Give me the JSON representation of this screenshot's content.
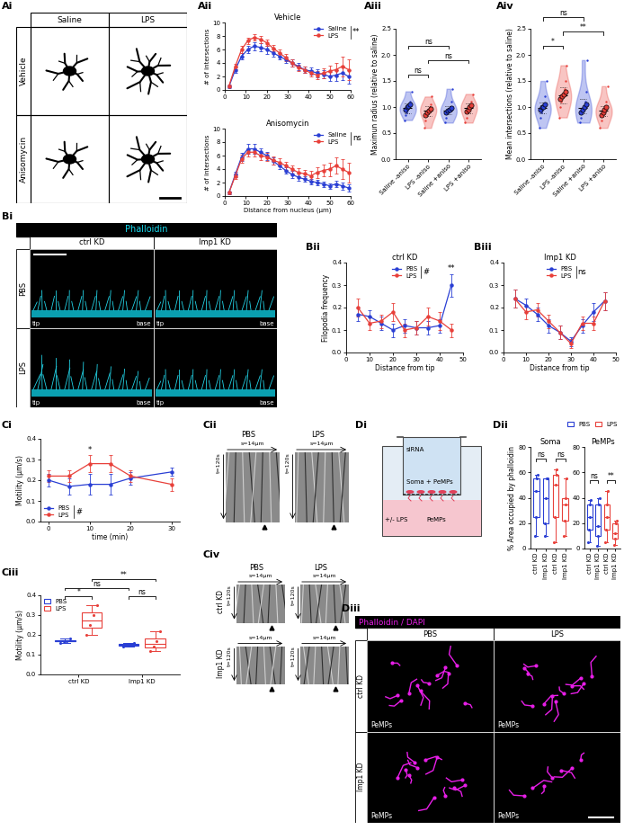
{
  "chart_data": [
    {
      "panel": "Aii",
      "type": "line",
      "title": "Vehicle",
      "y_label": "# of intersections",
      "x": [
        2,
        5,
        8,
        11,
        14,
        17,
        20,
        23,
        26,
        29,
        32,
        35,
        38,
        41,
        44,
        47,
        50,
        53,
        56,
        59
      ],
      "xlim": [
        0,
        60
      ],
      "xticks": [
        0,
        10,
        20,
        30,
        40,
        50,
        60
      ],
      "ylim": [
        0,
        10
      ],
      "yticks": [
        0,
        2,
        4,
        6,
        8,
        10
      ],
      "legend": "upper right",
      "stat": "**",
      "series": [
        {
          "name": "Saline",
          "color": "#2a3fd4",
          "values": [
            0.5,
            3.0,
            5.0,
            6.0,
            6.5,
            6.3,
            6.0,
            5.5,
            5.0,
            4.5,
            4.0,
            3.5,
            3.0,
            2.8,
            2.5,
            2.3,
            2.0,
            2.2,
            2.5,
            2.0
          ],
          "errors": [
            0.2,
            0.4,
            0.5,
            0.5,
            0.6,
            0.6,
            0.6,
            0.6,
            0.5,
            0.5,
            0.5,
            0.5,
            0.5,
            0.5,
            0.6,
            0.6,
            0.7,
            0.8,
            1.0,
            1.0
          ]
        },
        {
          "name": "LPS",
          "color": "#e8403a",
          "values": [
            0.6,
            3.5,
            6.0,
            7.3,
            7.8,
            7.5,
            7.0,
            6.2,
            5.5,
            4.8,
            4.0,
            3.3,
            3.0,
            2.5,
            2.2,
            2.5,
            2.8,
            3.0,
            3.5,
            3.0
          ],
          "errors": [
            0.2,
            0.4,
            0.5,
            0.5,
            0.5,
            0.5,
            0.5,
            0.5,
            0.5,
            0.5,
            0.5,
            0.5,
            0.5,
            0.5,
            0.6,
            0.7,
            0.8,
            1.0,
            1.5,
            1.5
          ]
        }
      ]
    },
    {
      "type": "line",
      "title": "Anisomycin",
      "x_label": "Distance from nucleus (µm)",
      "y_label": "# of intersections",
      "x": [
        2,
        5,
        8,
        11,
        14,
        17,
        20,
        23,
        26,
        29,
        32,
        35,
        38,
        41,
        44,
        47,
        50,
        53,
        56,
        59
      ],
      "xlim": [
        0,
        60
      ],
      "xticks": [
        0,
        10,
        20,
        30,
        40,
        50,
        60
      ],
      "ylim": [
        0,
        10
      ],
      "yticks": [
        0,
        2,
        4,
        6,
        8,
        10
      ],
      "legend": "upper right",
      "stat": "ns",
      "series": [
        {
          "name": "Saline",
          "color": "#2a3fd4",
          "values": [
            0.5,
            3.2,
            5.8,
            7.0,
            7.0,
            6.5,
            6.0,
            5.2,
            4.5,
            3.8,
            3.2,
            2.8,
            2.5,
            2.2,
            2.0,
            1.8,
            1.5,
            1.8,
            1.5,
            1.2
          ],
          "errors": [
            0.2,
            0.4,
            0.6,
            0.7,
            0.7,
            0.6,
            0.6,
            0.5,
            0.5,
            0.5,
            0.5,
            0.5,
            0.4,
            0.4,
            0.4,
            0.4,
            0.4,
            0.5,
            0.5,
            0.5
          ]
        },
        {
          "name": "LPS",
          "color": "#e8403a",
          "values": [
            0.5,
            3.0,
            5.5,
            6.5,
            6.5,
            6.0,
            5.8,
            5.3,
            5.0,
            4.5,
            4.0,
            3.5,
            3.3,
            3.0,
            3.5,
            3.8,
            4.0,
            4.5,
            4.0,
            3.5
          ],
          "errors": [
            0.2,
            0.4,
            0.6,
            0.6,
            0.6,
            0.6,
            0.6,
            0.6,
            0.6,
            0.6,
            0.6,
            0.6,
            0.6,
            0.7,
            0.8,
            0.9,
            1.0,
            1.2,
            1.5,
            1.5
          ]
        }
      ]
    },
    {
      "panel": "Aiii",
      "type": "violin",
      "y_label": "Maximun radius (relative to saline)",
      "categories": [
        "Saline -aniso",
        "LPS -aniso",
        "Saline +aniso",
        "LPS +aniso"
      ],
      "colors": [
        "#2a3fd4",
        "#e8403a",
        "#2a3fd4",
        "#e8403a"
      ],
      "ylim": [
        0,
        2.5
      ],
      "yticks": [
        {
          "value": 0,
          "label": "0.0"
        },
        0.5,
        {
          "value": 1,
          "label": "1.0"
        },
        1.5,
        {
          "value": 2,
          "label": "2.0"
        },
        2.5
      ],
      "values": [
        [
          0.75,
          0.85,
          0.9,
          0.95,
          1.0,
          1.05,
          1.1,
          1.3
        ],
        [
          0.6,
          0.75,
          0.85,
          0.9,
          0.95,
          1.0,
          1.05,
          1.2
        ],
        [
          0.7,
          0.8,
          0.88,
          0.92,
          0.95,
          1.0,
          1.1,
          1.35
        ],
        [
          0.7,
          0.8,
          0.9,
          0.95,
          1.0,
          1.05,
          1.1,
          1.25
        ]
      ],
      "animal_means": [
        [
          0.95,
          1.0,
          1.02,
          1.05
        ],
        [
          0.85,
          0.9,
          0.93,
          0.97
        ],
        [
          0.9,
          0.93,
          0.95,
          0.98
        ],
        [
          0.92,
          0.95,
          1.0,
          1.03
        ]
      ],
      "comparisons": [
        {
          "between": [
            0,
            1
          ],
          "label": "ns"
        },
        {
          "between": [
            1,
            3
          ],
          "label": "ns"
        },
        {
          "between": [
            0,
            2
          ],
          "label": "ns"
        }
      ]
    },
    {
      "panel": "Aiv",
      "type": "violin",
      "y_label": "Mean intersections (relative to saline)",
      "categories": [
        "Saline -aniso",
        "LPS -aniso",
        "Saline +aniso",
        "LPS +aniso"
      ],
      "colors": [
        "#2a3fd4",
        "#e8403a",
        "#2a3fd4",
        "#e8403a"
      ],
      "ylim": [
        0,
        2.5
      ],
      "yticks": [
        {
          "value": 0,
          "label": "0.0"
        },
        0.5,
        {
          "value": 1,
          "label": "1.0"
        },
        1.5,
        {
          "value": 2,
          "label": "2.0"
        },
        2.5
      ],
      "values": [
        [
          0.6,
          0.8,
          0.9,
          0.95,
          1.0,
          1.05,
          1.2,
          1.5
        ],
        [
          0.8,
          1.0,
          1.1,
          1.2,
          1.25,
          1.35,
          1.5,
          1.8
        ],
        [
          0.7,
          0.8,
          0.9,
          0.95,
          1.0,
          1.1,
          1.3,
          1.9
        ],
        [
          0.6,
          0.75,
          0.85,
          0.9,
          0.95,
          1.0,
          1.1,
          1.4
        ]
      ],
      "animal_means": [
        [
          0.95,
          1.0,
          1.0,
          1.05
        ],
        [
          1.15,
          1.2,
          1.25,
          1.3
        ],
        [
          0.9,
          0.95,
          1.0,
          1.05
        ],
        [
          0.85,
          0.9,
          0.95,
          1.0
        ]
      ],
      "comparisons": [
        {
          "between": [
            0,
            1
          ],
          "label": "*"
        },
        {
          "between": [
            1,
            3
          ],
          "label": "**"
        },
        {
          "between": [
            0,
            2
          ],
          "label": "ns"
        }
      ]
    },
    {
      "panel": "Bii",
      "type": "line",
      "title": "ctrl KD",
      "x_label": "Distance from tip",
      "y_label": "Filopodia frequency",
      "x": [
        5,
        10,
        15,
        20,
        25,
        30,
        35,
        40,
        45
      ],
      "xlim": [
        0,
        50
      ],
      "xticks": [
        0,
        10,
        20,
        30,
        40,
        50
      ],
      "ylim": [
        0,
        0.4
      ],
      "yticks": [
        {
          "value": 0,
          "label": "0.0"
        },
        0.1,
        0.2,
        0.3,
        0.4
      ],
      "legend": "upper center",
      "stat": "#",
      "annotations": [
        {
          "x": 45,
          "text": "**"
        }
      ],
      "series": [
        {
          "name": "PBS",
          "color": "#2a3fd4",
          "values": [
            0.17,
            0.16,
            0.13,
            0.1,
            0.12,
            0.11,
            0.11,
            0.12,
            0.3
          ],
          "errors": [
            0.03,
            0.03,
            0.03,
            0.03,
            0.03,
            0.03,
            0.03,
            0.03,
            0.05
          ]
        },
        {
          "name": "LPS",
          "color": "#e8403a",
          "values": [
            0.2,
            0.13,
            0.14,
            0.18,
            0.1,
            0.11,
            0.16,
            0.14,
            0.1
          ],
          "errors": [
            0.04,
            0.03,
            0.03,
            0.04,
            0.03,
            0.03,
            0.04,
            0.04,
            0.03
          ]
        }
      ]
    },
    {
      "panel": "Biii",
      "type": "line",
      "title": "Imp1 KD",
      "x_label": "Distance from tip",
      "x": [
        5,
        10,
        15,
        20,
        25,
        30,
        35,
        40,
        45
      ],
      "xlim": [
        0,
        50
      ],
      "xticks": [
        0,
        10,
        20,
        30,
        40,
        50
      ],
      "ylim": [
        0,
        0.4
      ],
      "yticks": [
        {
          "value": 0,
          "label": "0.0"
        },
        0.1,
        0.2,
        0.3,
        0.4
      ],
      "legend": "upper center",
      "stat": "ns",
      "series": [
        {
          "name": "PBS",
          "color": "#2a3fd4",
          "values": [
            0.24,
            0.21,
            0.17,
            0.12,
            0.09,
            0.05,
            0.12,
            0.18,
            0.23
          ],
          "errors": [
            0.04,
            0.03,
            0.03,
            0.03,
            0.03,
            0.02,
            0.03,
            0.04,
            0.04
          ]
        },
        {
          "name": "LPS",
          "color": "#e8403a",
          "values": [
            0.24,
            0.18,
            0.19,
            0.14,
            0.09,
            0.04,
            0.13,
            0.13,
            0.23
          ],
          "errors": [
            0.04,
            0.03,
            0.03,
            0.03,
            0.03,
            0.02,
            0.03,
            0.03,
            0.04
          ]
        }
      ]
    },
    {
      "panel": "Ci",
      "type": "line",
      "x_label": "time (min)",
      "y_label": "Motility (µm/s)",
      "x": [
        0,
        5,
        10,
        15,
        20,
        30
      ],
      "xlim": [
        -2,
        32
      ],
      "xticks": [
        0,
        10,
        20,
        30
      ],
      "ylim": [
        0,
        0.4
      ],
      "yticks": [
        {
          "value": 0,
          "label": "0.0"
        },
        0.1,
        0.2,
        0.3,
        0.4
      ],
      "legend": "lower left",
      "stat": "#",
      "annotations": [
        {
          "x": 10,
          "text": "*"
        }
      ],
      "series": [
        {
          "name": "PBS",
          "color": "#2a3fd4",
          "values": [
            0.2,
            0.17,
            0.18,
            0.18,
            0.21,
            0.24
          ],
          "errors": [
            0.03,
            0.04,
            0.05,
            0.05,
            0.03,
            0.02
          ]
        },
        {
          "name": "LPS",
          "color": "#e8403a",
          "values": [
            0.22,
            0.22,
            0.28,
            0.28,
            0.22,
            0.18
          ],
          "errors": [
            0.03,
            0.03,
            0.04,
            0.04,
            0.03,
            0.03
          ]
        }
      ]
    },
    {
      "panel": "Ciii",
      "type": "box",
      "y_label": "Motility (µm/s)",
      "categories": [
        "ctrl KD",
        "Imp1 KD"
      ],
      "ylim": [
        0,
        0.4
      ],
      "yticks": [
        {
          "value": 0,
          "label": "0.0"
        },
        0.1,
        0.2,
        0.3,
        0.4
      ],
      "legend": "upper left",
      "series": [
        {
          "name": "PBS",
          "color": "#2a3fd4",
          "values": [
            [
              0.16,
              0.17,
              0.17,
              0.18
            ],
            [
              0.14,
              0.15,
              0.15,
              0.16
            ]
          ]
        },
        {
          "name": "LPS",
          "color": "#e8403a",
          "values": [
            [
              0.2,
              0.25,
              0.3,
              0.35
            ],
            [
              0.12,
              0.14,
              0.17,
              0.22
            ]
          ]
        }
      ],
      "comparisons": [
        {
          "between": [
            0,
            1
          ],
          "label": "*"
        },
        {
          "between": [
            2,
            3
          ],
          "label": "ns"
        },
        {
          "between": [
            0,
            2
          ],
          "label": "ns"
        },
        {
          "between": [
            1,
            3
          ],
          "label": "**"
        }
      ]
    },
    {
      "panel": "Dii",
      "type": "box",
      "title": "Soma",
      "y_label": "% Area occupied by phalloidin",
      "categories": [
        "ctrl KD",
        "Imp1 KD"
      ],
      "ylim": [
        0,
        80
      ],
      "yticks": [
        0,
        20,
        40,
        60,
        80
      ],
      "series": [
        {
          "name": "PBS",
          "color": "#2a3fd4",
          "values": [
            [
              10,
              25,
              45,
              55,
              58
            ],
            [
              10,
              20,
              40,
              55,
              55
            ]
          ]
        },
        {
          "name": "LPS",
          "color": "#e8403a",
          "values": [
            [
              5,
              25,
              50,
              58,
              62
            ],
            [
              10,
              22,
              35,
              40,
              55
            ]
          ]
        }
      ],
      "comparisons": [
        {
          "between": [
            0,
            1
          ],
          "label": "ns"
        },
        {
          "between": [
            2,
            3
          ],
          "label": "ns"
        }
      ]
    },
    {
      "type": "box",
      "title": "PeMPs",
      "categories": [
        "ctrl KD",
        "Imp1 KD"
      ],
      "ylim": [
        0,
        80
      ],
      "yticks": [
        0,
        20,
        40,
        60,
        80
      ],
      "legend": "upper right",
      "series": [
        {
          "name": "PBS",
          "color": "#2a3fd4",
          "values": [
            [
              5,
              15,
              25,
              35,
              38
            ],
            [
              2,
              10,
              18,
              35,
              40
            ]
          ]
        },
        {
          "name": "LPS",
          "color": "#e8403a",
          "values": [
            [
              5,
              15,
              25,
              35,
              45
            ],
            [
              3,
              8,
              12,
              20,
              22
            ]
          ]
        }
      ],
      "comparisons": [
        {
          "between": [
            0,
            1
          ],
          "label": "ns"
        },
        {
          "between": [
            2,
            3
          ],
          "label": "**"
        }
      ]
    }
  ],
  "image_panels": [
    {
      "panel": "Ai",
      "columns": [
        "Saline",
        "LPS"
      ],
      "rows": [
        "Vehicle",
        "Anisomycin"
      ]
    },
    {
      "panel": "Bi",
      "header": "Phalloidin",
      "columns": [
        "ctrl KD",
        "Imp1 KD"
      ],
      "rows": [
        "PBS",
        "LPS"
      ],
      "cell_labels": [
        "tip",
        "base"
      ]
    },
    {
      "panel": "Cii",
      "columns": [
        "PBS",
        "LPS"
      ],
      "space_label": "s=14µm",
      "time_label": "t=120s"
    },
    {
      "panel": "Civ",
      "columns": [
        "PBS",
        "LPS"
      ],
      "rows": [
        "ctrl KD",
        "Imp1 KD"
      ],
      "space_label": "s=14µm",
      "time_label": "t=120s"
    },
    {
      "panel": "Di",
      "labels": [
        "siRNA",
        "Soma + PeMPs",
        "+/- LPS",
        "PeMPs"
      ]
    },
    {
      "panel": "Diii",
      "header": "Phalloidin / DAPI",
      "columns": [
        "PBS",
        "LPS"
      ],
      "rows": [
        "ctrl KD",
        "Imp1 KD"
      ],
      "cell_label": "PeMPs"
    }
  ]
}
